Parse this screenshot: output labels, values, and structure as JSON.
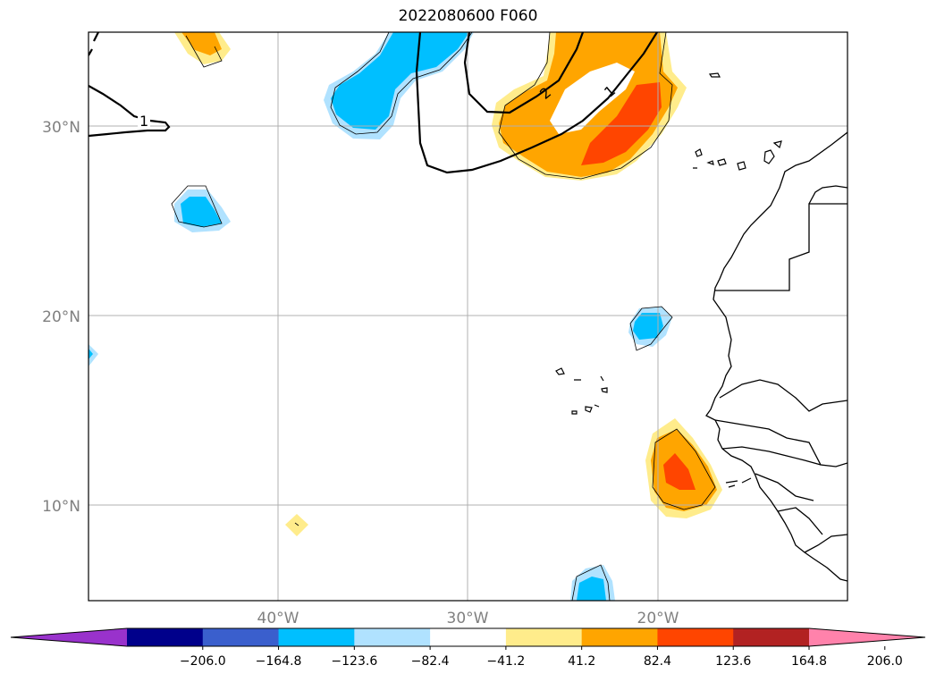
{
  "title": "2022080600 F060",
  "map": {
    "lat_ticks": [
      "30°N",
      "20°N",
      "10°N"
    ],
    "lon_ticks": [
      "40°W",
      "30°W",
      "20°W"
    ],
    "contour_labels": [
      "1",
      "2",
      "1"
    ]
  },
  "colorbar": {
    "colors": [
      "#9932cc",
      "#00008b",
      "#3a5fcd",
      "#00bfff",
      "#b0e2ff",
      "#ffffff",
      "#ffec8b",
      "#ffa500",
      "#ff4500",
      "#b22222",
      "#ff82ab"
    ],
    "tick_labels": [
      "−206.0",
      "−164.8",
      "−123.6",
      "−82.4",
      "−41.2",
      "41.2",
      "82.4",
      "123.6",
      "164.8",
      "206.0"
    ],
    "extend": "both"
  }
}
